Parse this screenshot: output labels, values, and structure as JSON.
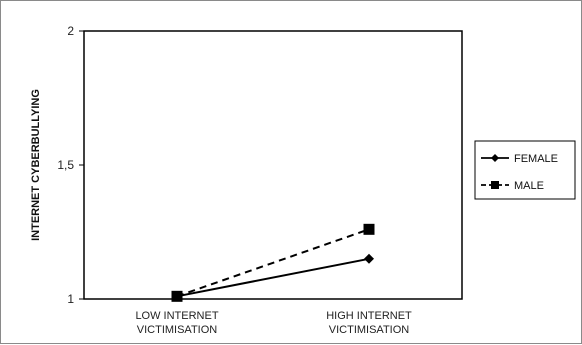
{
  "chart_data": {
    "type": "line",
    "categories": [
      [
        "LOW INTERNET",
        "VICTIMISATION"
      ],
      [
        "HIGH INTERNET",
        "VICTIMISATION"
      ]
    ],
    "ylabel": "INTERNET CYBERBULLYING",
    "ylim": [
      1,
      2
    ],
    "yticks": [
      "1",
      "1,5",
      "2"
    ],
    "ytick_values": [
      1,
      1.5,
      2
    ],
    "series": [
      {
        "name": "FEMALE",
        "values": [
          1.01,
          1.15
        ],
        "line_style": "solid",
        "marker": "diamond",
        "color": "#000000"
      },
      {
        "name": "MALE",
        "values": [
          1.01,
          1.26
        ],
        "line_style": "dashed",
        "marker": "square",
        "color": "#000000"
      }
    ],
    "legend_position": "right",
    "grid": false
  }
}
